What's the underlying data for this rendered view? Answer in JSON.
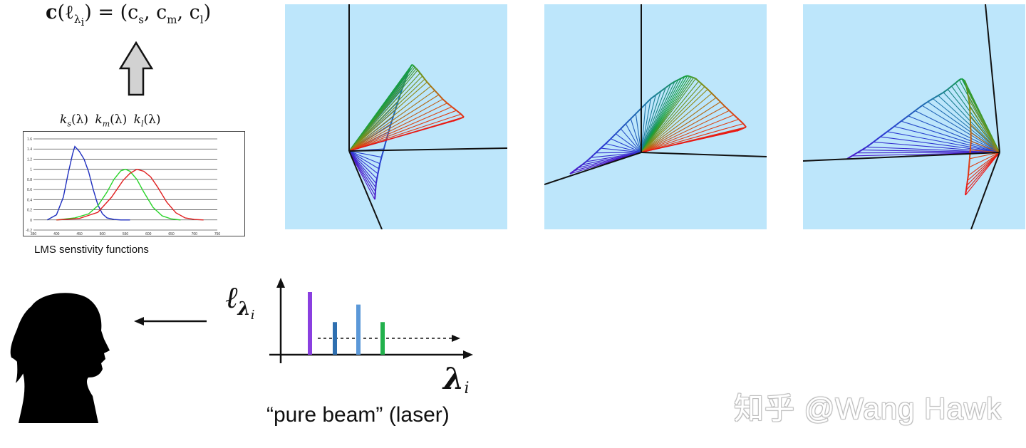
{
  "equation": {
    "bold_c": "c",
    "lhs_open": "(ℓ",
    "sub_lambda": "λ",
    "sub_i": "i",
    "rhs": ") = (c",
    "s": "s",
    "m": "m",
    "l": "l",
    "comma1": ", c",
    "comma2": ", c",
    "close": ")"
  },
  "sensitivity_labels": {
    "ks": {
      "k": "k",
      "sub": "s",
      "arg": "(λ)"
    },
    "km": {
      "k": "k",
      "sub": "m",
      "arg": "(λ)"
    },
    "kl": {
      "k": "k",
      "sub": "l",
      "arg": "(λ)"
    }
  },
  "lms_chart": {
    "caption": "LMS senstivity functions",
    "chart_data": {
      "type": "line",
      "x_ticks": [
        "350",
        "400",
        "450",
        "500",
        "550",
        "600",
        "650",
        "700",
        "750"
      ],
      "y_ticks": [
        "1.6",
        "1.4",
        "1.2",
        "1",
        "0.8",
        "0.6",
        "0.4",
        "0.2",
        "0",
        "-0.2"
      ],
      "xlim": [
        350,
        750
      ],
      "ylim": [
        -0.2,
        1.6
      ],
      "series": [
        {
          "color": "#1f2fbf",
          "x": [
            380,
            400,
            415,
            425,
            435,
            440,
            450,
            460,
            470,
            480,
            490,
            500,
            510,
            525,
            540,
            560
          ],
          "y": [
            0,
            0.1,
            0.45,
            0.9,
            1.3,
            1.45,
            1.35,
            1.2,
            0.95,
            0.6,
            0.3,
            0.12,
            0.04,
            0.01,
            0,
            0
          ]
        },
        {
          "color": "#2ad42a",
          "x": [
            400,
            440,
            470,
            490,
            510,
            525,
            540,
            550,
            560,
            575,
            590,
            610,
            630,
            650,
            670
          ],
          "y": [
            0,
            0.04,
            0.12,
            0.28,
            0.55,
            0.8,
            0.97,
            1.0,
            0.96,
            0.8,
            0.55,
            0.25,
            0.08,
            0.02,
            0
          ]
        },
        {
          "color": "#e02020",
          "x": [
            400,
            450,
            490,
            520,
            545,
            560,
            575,
            590,
            605,
            620,
            640,
            660,
            680,
            700,
            720
          ],
          "y": [
            0,
            0.03,
            0.15,
            0.45,
            0.78,
            0.92,
            1.0,
            0.96,
            0.85,
            0.65,
            0.35,
            0.14,
            0.04,
            0.01,
            0
          ]
        }
      ]
    }
  },
  "spectrum": {
    "y_label": "ℓ",
    "y_label_sub": "λ",
    "y_label_sub_i": "i",
    "x_label": "λ",
    "x_label_sub": "i",
    "bars": [
      {
        "color": "#8a3fe0",
        "height": 1.0
      },
      {
        "color": "#2e6fb0",
        "height": 0.52
      },
      {
        "color": "#5b98d8",
        "height": 0.8
      },
      {
        "color": "#22b14c",
        "height": 0.52
      }
    ],
    "caption": "“pure beam” (laser)"
  },
  "watermark": "知乎 @Wang Hawk",
  "colors": {
    "panel_bg": "#bde6fb",
    "arrow_fill": "#d2d2d2"
  }
}
